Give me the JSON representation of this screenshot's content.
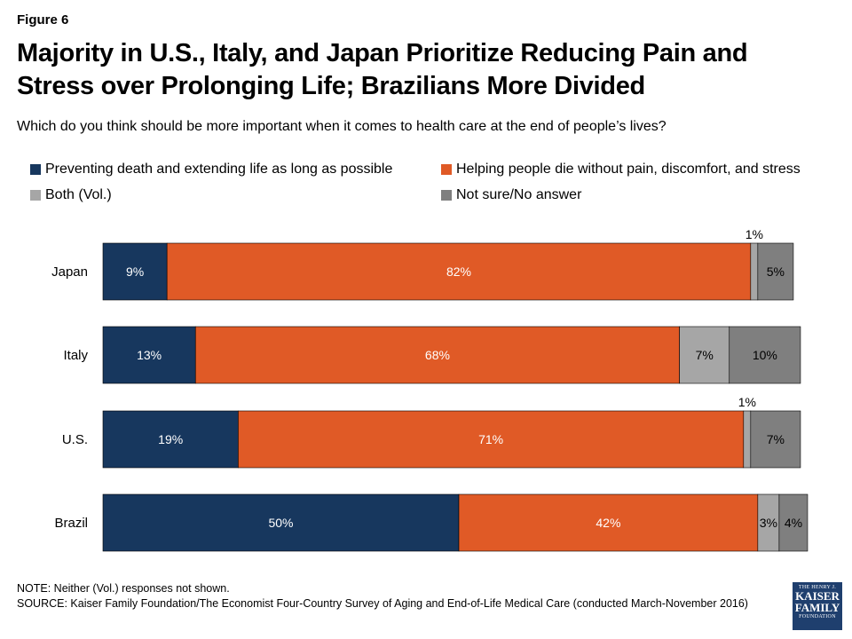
{
  "figure_label": "Figure 6",
  "subtitle": "Which do you think should be more important when it comes to health care at the end of people’s lives?",
  "note": "NOTE: Neither (Vol.) responses not shown.",
  "source": "SOURCE: Kaiser Family Foundation/The Economist Four-Country Survey of Aging and End-of-Life Medical Care (conducted March-November 2016)",
  "logo": {
    "line1": "THE HENRY J.",
    "line2": "KAISER",
    "line3": "FAMILY",
    "line4": "FOUNDATION"
  },
  "colors": {
    "navy": "#17375e",
    "orange": "#e05a26",
    "light_gray": "#a6a6a6",
    "dark_gray": "#7f7f7f"
  },
  "chart_data": {
    "type": "bar",
    "orientation": "horizontal",
    "stacked": true,
    "title": "Majority in U.S., Italy, and Japan Prioritize Reducing Pain and Stress over Prolonging Life; Brazilians More Divided",
    "categories": [
      "Japan",
      "Italy",
      "U.S.",
      "Brazil"
    ],
    "series": [
      {
        "name": "Preventing death and extending life as long as possible",
        "color": "#17375e",
        "values": [
          9,
          13,
          19,
          50
        ]
      },
      {
        "name": "Helping people die without pain, discomfort, and stress",
        "color": "#e05a26",
        "values": [
          82,
          68,
          71,
          42
        ]
      },
      {
        "name": "Both (Vol.)",
        "color": "#a6a6a6",
        "values": [
          1,
          7,
          1,
          3
        ]
      },
      {
        "name": "Not sure/No answer",
        "color": "#7f7f7f",
        "values": [
          5,
          10,
          7,
          4
        ]
      }
    ],
    "value_suffix": "%",
    "xlim": [
      0,
      100
    ],
    "legend_position": "top",
    "grid": false
  }
}
